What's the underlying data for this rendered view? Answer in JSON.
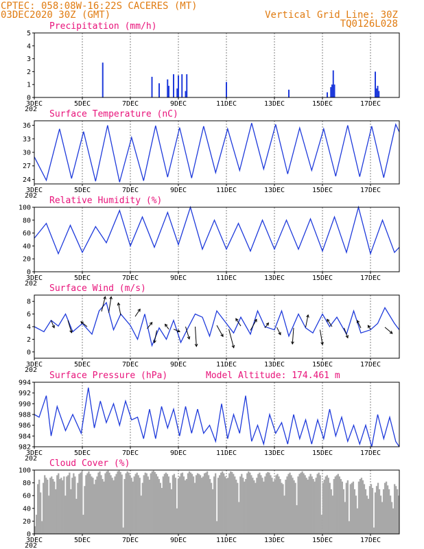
{
  "header": {
    "line1": "CPTEC:   058:08W-16:22S   CACERES (MT)",
    "line2": "03DEC2020 30Z (GMT)",
    "grid_note": "Vertical Grid Line: 30Z",
    "model_id": "TQ0126L028"
  },
  "colors": {
    "header": "#e07b10",
    "title": "#e8127a",
    "series": "#1e3adb",
    "cloud": "#a8a8a8",
    "arrow": "#000000"
  },
  "x_ticks": [
    "3DEC",
    "5DEC",
    "7DEC",
    "9DEC",
    "11DEC",
    "13DEC",
    "15DEC",
    "17DEC"
  ],
  "x_start_label": "202",
  "chart_data": [
    {
      "id": "precipitation",
      "type": "bar",
      "title": "Precipitation (mm/h)",
      "x_range_days": [
        3,
        18.2
      ],
      "ylim": [
        0,
        5
      ],
      "yticks": [
        0,
        1,
        2,
        3,
        4,
        5
      ],
      "x": [
        5.85,
        7.9,
        8.2,
        8.55,
        8.6,
        8.8,
        8.95,
        9.0,
        9.15,
        9.3,
        9.35,
        11.0,
        13.6,
        15.2,
        15.35,
        15.4,
        15.45,
        15.5,
        17.2,
        17.25,
        17.3,
        17.35
      ],
      "values": [
        2.7,
        1.6,
        1.1,
        1.4,
        0.9,
        1.8,
        0.7,
        1.7,
        1.8,
        0.5,
        1.8,
        1.2,
        0.6,
        0.4,
        0.8,
        1.0,
        2.1,
        1.0,
        2.0,
        0.7,
        0.9,
        0.5
      ]
    },
    {
      "id": "temperature",
      "type": "line",
      "title": "Surface Temperature (nC)",
      "x_range_days": [
        3,
        18.2
      ],
      "ylim": [
        23,
        37
      ],
      "yticks": [
        24,
        27,
        30,
        33,
        36
      ],
      "x": [
        3.0,
        3.5,
        4.05,
        4.55,
        5.05,
        5.55,
        6.05,
        6.55,
        7.05,
        7.55,
        8.05,
        8.55,
        9.05,
        9.55,
        10.05,
        10.55,
        11.05,
        11.55,
        12.05,
        12.55,
        13.05,
        13.55,
        14.05,
        14.55,
        15.05,
        15.55,
        16.05,
        16.55,
        17.05,
        17.55,
        18.05,
        18.2
      ],
      "values": [
        29,
        23.8,
        35.2,
        24.2,
        34.6,
        23.6,
        36.0,
        23.4,
        33.3,
        23.7,
        35.9,
        24.5,
        35.5,
        24.3,
        35.8,
        25.5,
        35.2,
        26.0,
        36.5,
        26.3,
        36.2,
        25.2,
        35.4,
        26.0,
        35.2,
        24.7,
        36.0,
        24.6,
        35.8,
        24.4,
        36.2,
        34.5
      ]
    },
    {
      "id": "humidity",
      "type": "line",
      "title": "Relative Humidity (%)",
      "x_range_days": [
        3,
        18.2
      ],
      "ylim": [
        0,
        100
      ],
      "yticks": [
        0,
        20,
        40,
        60,
        80,
        100
      ],
      "x": [
        3.0,
        3.5,
        4.0,
        4.5,
        5.0,
        5.55,
        6.0,
        6.55,
        7.0,
        7.5,
        8.0,
        8.55,
        9.0,
        9.5,
        10.0,
        10.5,
        11.0,
        11.5,
        12.0,
        12.5,
        13.0,
        13.5,
        14.0,
        14.5,
        15.0,
        15.5,
        16.0,
        16.5,
        17.0,
        17.5,
        18.0,
        18.2
      ],
      "values": [
        52,
        75,
        28,
        72,
        30,
        70,
        45,
        95,
        40,
        85,
        38,
        92,
        42,
        100,
        35,
        80,
        35,
        75,
        32,
        80,
        35,
        80,
        35,
        82,
        32,
        85,
        30,
        100,
        28,
        80,
        30,
        38
      ]
    },
    {
      "id": "wind",
      "type": "line",
      "title": "Surface Wind (m/s)",
      "x_range_days": [
        3,
        18.2
      ],
      "ylim": [
        -1,
        9
      ],
      "yticks": [
        0,
        2,
        4,
        6,
        8
      ],
      "x": [
        3.0,
        3.4,
        3.7,
        4.0,
        4.3,
        4.6,
        5.0,
        5.4,
        5.7,
        6.0,
        6.3,
        6.6,
        7.0,
        7.3,
        7.6,
        7.9,
        8.2,
        8.5,
        8.8,
        9.1,
        9.4,
        9.7,
        10.0,
        10.3,
        10.6,
        11.0,
        11.3,
        11.6,
        12.0,
        12.3,
        12.6,
        13.0,
        13.3,
        13.6,
        14.0,
        14.3,
        14.6,
        15.0,
        15.3,
        15.6,
        16.0,
        16.3,
        16.6,
        17.0,
        17.3,
        17.6,
        18.0,
        18.2
      ],
      "values": [
        4.0,
        3.2,
        5.0,
        4.1,
        6.0,
        3.2,
        4.5,
        2.8,
        6.5,
        7.8,
        3.5,
        6.0,
        4.2,
        2.0,
        6.0,
        1.0,
        3.8,
        2.0,
        5.0,
        1.5,
        3.8,
        6.0,
        5.5,
        2.5,
        6.5,
        4.5,
        3.0,
        5.5,
        2.8,
        6.5,
        4.0,
        3.5,
        6.5,
        2.5,
        6.0,
        3.8,
        3.0,
        6.0,
        4.0,
        5.5,
        2.8,
        6.5,
        3.0,
        3.5,
        4.5,
        7.0,
        4.5,
        3.5
      ],
      "arrows": [
        {
          "x": 3.7,
          "y": 5.0,
          "u": 0.25,
          "v": -0.6
        },
        {
          "x": 4.4,
          "y": 5.0,
          "u": 0.3,
          "v": -1.0
        },
        {
          "x": 5.2,
          "y": 4.0,
          "u": -0.5,
          "v": 0.4
        },
        {
          "x": 5.8,
          "y": 6.4,
          "u": 0.3,
          "v": 1.2
        },
        {
          "x": 6.1,
          "y": 6.2,
          "u": 0.2,
          "v": 1.3
        },
        {
          "x": 6.6,
          "y": 5.8,
          "u": -0.2,
          "v": 1.0
        },
        {
          "x": 7.2,
          "y": 5.6,
          "u": 0.4,
          "v": 0.6
        },
        {
          "x": 7.7,
          "y": 3.7,
          "u": 0.4,
          "v": 0.5
        },
        {
          "x": 8.1,
          "y": 3.4,
          "u": -0.2,
          "v": -1.0
        },
        {
          "x": 8.6,
          "y": 3.6,
          "u": -0.3,
          "v": 0.4
        },
        {
          "x": 8.8,
          "y": 3.6,
          "u": 0.5,
          "v": -0.2
        },
        {
          "x": 9.3,
          "y": 4.0,
          "u": 0.3,
          "v": -1.0
        },
        {
          "x": 9.7,
          "y": 4.0,
          "u": 0.1,
          "v": -1.6
        },
        {
          "x": 10.6,
          "y": 4.2,
          "u": 0.5,
          "v": -0.9
        },
        {
          "x": 11.1,
          "y": 3.6,
          "u": 0.4,
          "v": -1.5
        },
        {
          "x": 11.6,
          "y": 4.1,
          "u": -0.4,
          "v": 0.6
        },
        {
          "x": 12.0,
          "y": 3.4,
          "u": 0.5,
          "v": 0.9
        },
        {
          "x": 12.6,
          "y": 3.8,
          "u": 0.3,
          "v": 0.4
        },
        {
          "x": 13.1,
          "y": 3.9,
          "u": 0.3,
          "v": -0.6
        },
        {
          "x": 13.8,
          "y": 3.8,
          "u": -0.1,
          "v": -1.3
        },
        {
          "x": 14.3,
          "y": 3.9,
          "u": 0.2,
          "v": 1.0
        },
        {
          "x": 14.9,
          "y": 3.5,
          "u": 0.2,
          "v": -1.2
        },
        {
          "x": 15.4,
          "y": 4.0,
          "u": -0.4,
          "v": 0.6
        },
        {
          "x": 15.9,
          "y": 3.8,
          "u": 0.3,
          "v": -0.8
        },
        {
          "x": 16.6,
          "y": 3.8,
          "u": -0.3,
          "v": 0.6
        },
        {
          "x": 17.0,
          "y": 3.6,
          "u": -0.2,
          "v": 0.3
        },
        {
          "x": 17.6,
          "y": 3.9,
          "u": 0.6,
          "v": -0.5
        }
      ]
    },
    {
      "id": "pressure",
      "type": "line",
      "title": "Surface Pressure (hPa)",
      "annotation": "Model Altitude: 174.461 m",
      "x_range_days": [
        3,
        18.2
      ],
      "ylim": [
        982,
        994
      ],
      "yticks": [
        982,
        984,
        986,
        988,
        990,
        992,
        994
      ],
      "x": [
        3.0,
        3.2,
        3.5,
        3.7,
        3.95,
        4.3,
        4.6,
        4.95,
        5.25,
        5.5,
        5.75,
        6.0,
        6.3,
        6.55,
        6.8,
        7.05,
        7.3,
        7.55,
        7.8,
        8.05,
        8.3,
        8.55,
        8.8,
        9.05,
        9.3,
        9.55,
        9.8,
        10.05,
        10.3,
        10.55,
        10.8,
        11.05,
        11.3,
        11.55,
        11.8,
        12.05,
        12.3,
        12.55,
        12.8,
        13.05,
        13.3,
        13.55,
        13.8,
        14.05,
        14.3,
        14.55,
        14.8,
        15.05,
        15.3,
        15.55,
        15.8,
        16.05,
        16.3,
        16.55,
        16.8,
        17.05,
        17.3,
        17.55,
        17.8,
        18.05,
        18.2
      ],
      "values": [
        988,
        987.5,
        991.5,
        984,
        989.5,
        985,
        988,
        984.5,
        993,
        985.5,
        990.5,
        986.5,
        990,
        986,
        990.5,
        987,
        987.5,
        983.5,
        989,
        983.5,
        989.5,
        985.5,
        989,
        984,
        989.5,
        984.5,
        989,
        984.5,
        986,
        983,
        990,
        983.5,
        988,
        984.5,
        991.5,
        983,
        986,
        982.5,
        988,
        984.5,
        986.5,
        982.5,
        988,
        983.5,
        987,
        982.5,
        987,
        983.5,
        989,
        984,
        987.5,
        983,
        986,
        982.5,
        986,
        982,
        988,
        983.5,
        987.5,
        983,
        982
      ]
    },
    {
      "id": "cloud",
      "type": "bar",
      "title": "Cloud Cover (%)",
      "x_range_days": [
        3,
        18.2
      ],
      "ylim": [
        0,
        100
      ],
      "yticks": [
        0,
        20,
        40,
        60,
        80,
        100
      ],
      "x_step": 0.125,
      "x0": 3.0,
      "values": [
        12,
        30,
        78,
        85,
        65,
        20,
        80,
        92,
        88,
        85,
        60,
        88,
        90,
        86,
        82,
        70,
        92,
        95,
        86,
        88,
        84,
        90,
        60,
        90,
        92,
        96,
        70,
        88,
        95,
        90,
        55,
        80,
        94,
        96,
        98,
        30,
        75,
        92,
        95,
        98,
        94,
        90,
        88,
        78,
        85,
        90,
        96,
        98,
        92,
        86,
        82,
        95,
        98,
        99,
        96,
        92,
        88,
        84,
        90,
        94,
        98,
        99,
        97,
        93,
        10,
        86,
        95,
        98,
        96,
        92,
        88,
        82,
        90,
        94,
        96,
        92,
        88,
        60,
        80,
        92,
        96,
        95,
        90,
        85,
        95,
        98,
        99,
        97,
        94,
        90,
        86,
        80,
        72,
        90,
        94,
        96,
        94,
        90,
        80,
        70,
        92,
        94,
        88,
        40,
        86,
        90,
        95,
        96,
        90,
        84,
        86,
        95,
        98,
        96,
        94,
        90,
        80,
        92,
        95,
        94,
        92,
        88,
        90,
        95,
        96,
        98,
        92,
        86,
        80,
        70,
        90,
        95,
        20,
        88,
        92,
        96,
        98,
        95,
        90,
        86,
        88,
        95,
        98,
        97,
        94,
        90,
        85,
        80,
        50,
        90,
        94,
        88,
        82,
        86,
        95,
        98,
        96,
        92,
        88,
        84,
        80,
        88,
        94,
        96,
        92,
        88,
        82,
        90,
        95,
        97,
        96,
        92,
        88,
        82,
        85,
        92,
        94,
        90,
        86,
        80,
        78,
        60,
        85,
        90,
        94,
        96,
        92,
        88,
        84,
        80,
        45,
        90,
        94,
        96,
        98,
        95,
        92,
        88,
        85,
        90,
        94,
        90,
        86,
        82,
        88,
        94,
        96,
        92,
        30,
        80,
        85,
        90,
        92,
        88,
        80,
        70,
        60,
        86,
        90,
        92,
        94,
        90,
        86,
        82,
        70,
        50,
        80,
        84,
        20,
        78,
        80,
        82,
        70,
        60,
        40,
        82,
        86,
        88,
        84,
        78,
        70,
        60,
        55,
        75,
        78,
        72,
        10,
        65,
        75,
        80,
        70,
        60,
        50,
        70,
        80,
        82,
        76,
        70,
        60,
        50,
        40,
        78,
        75,
        70,
        60
      ]
    }
  ]
}
